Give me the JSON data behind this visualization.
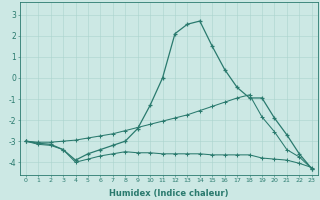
{
  "xlabel": "Humidex (Indice chaleur)",
  "background_color": "#cce8e4",
  "line_color": "#2a7a6e",
  "grid_color": "#aad4ce",
  "xlim": [
    -0.5,
    23.5
  ],
  "ylim": [
    -4.6,
    3.6
  ],
  "yticks": [
    -4,
    -3,
    -2,
    -1,
    0,
    1,
    2,
    3
  ],
  "xticks": [
    0,
    1,
    2,
    3,
    4,
    5,
    6,
    7,
    8,
    9,
    10,
    11,
    12,
    13,
    14,
    15,
    16,
    17,
    18,
    19,
    20,
    21,
    22,
    23
  ],
  "line1_x": [
    0,
    1,
    2,
    3,
    4,
    5,
    6,
    7,
    8,
    9,
    10,
    11,
    12,
    13,
    14,
    15,
    16,
    17,
    18,
    19,
    20,
    21,
    22,
    23
  ],
  "line1_y": [
    -3.0,
    -3.1,
    -3.15,
    -3.4,
    -3.9,
    -3.6,
    -3.4,
    -3.2,
    -3.0,
    -2.4,
    -1.3,
    0.0,
    2.1,
    2.55,
    2.7,
    1.5,
    0.4,
    -0.45,
    -0.95,
    -0.95,
    -1.9,
    -2.7,
    -3.6,
    -4.3
  ],
  "line2_x": [
    0,
    1,
    2,
    3,
    4,
    5,
    6,
    7,
    8,
    9,
    10,
    11,
    12,
    13,
    14,
    15,
    16,
    17,
    18,
    19,
    20,
    21,
    22,
    23
  ],
  "line2_y": [
    -3.0,
    -3.15,
    -3.2,
    -3.4,
    -4.0,
    -3.85,
    -3.7,
    -3.6,
    -3.5,
    -3.55,
    -3.55,
    -3.6,
    -3.6,
    -3.6,
    -3.6,
    -3.65,
    -3.65,
    -3.65,
    -3.65,
    -3.8,
    -3.85,
    -3.9,
    -4.05,
    -4.25
  ],
  "line3_x": [
    0,
    1,
    2,
    3,
    4,
    5,
    6,
    7,
    8,
    9,
    10,
    11,
    12,
    13,
    14,
    15,
    16,
    17,
    18,
    19,
    20,
    21,
    22,
    23
  ],
  "line3_y": [
    -3.0,
    -3.05,
    -3.05,
    -3.0,
    -2.95,
    -2.85,
    -2.75,
    -2.65,
    -2.5,
    -2.35,
    -2.2,
    -2.05,
    -1.9,
    -1.75,
    -1.55,
    -1.35,
    -1.15,
    -0.95,
    -0.8,
    -1.85,
    -2.55,
    -3.4,
    -3.75,
    -4.3
  ]
}
